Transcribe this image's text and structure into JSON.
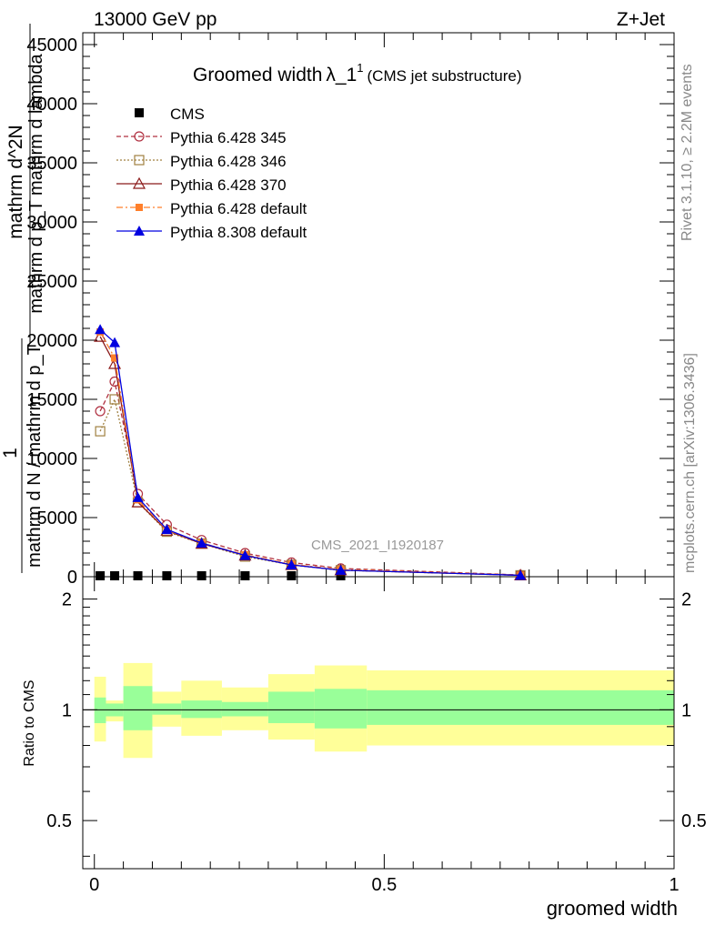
{
  "header": {
    "left": "13000 GeV pp",
    "right": "Z+Jet"
  },
  "side": {
    "rivet": "Rivet 3.1.10, ≥ 2.2M events",
    "mcplots": "mcplots.cern.ch [arXiv:1306.3436]"
  },
  "colors": {
    "cms": "#000000",
    "p345": "#b03040",
    "p346": "#a08040",
    "p370": "#8b1a1a",
    "p6def": "#ff7f2a",
    "p8def": "#0000e0",
    "band_inner": "#99ff99",
    "band_outer": "#ffff99"
  },
  "chart_data": [
    {
      "type": "line",
      "title": "Groomed width",
      "title_symbol": "λ_1",
      "title_sup": "1",
      "title_suffix": "(CMS jet substructure)",
      "watermark": "CMS_2021_I1920187",
      "ylabel_lines": [
        "1",
        "mathrm d N / mathrm d p_T",
        "mathrm d^2N",
        "mathrm d p_T mathrm d lambda"
      ],
      "ylim": [
        0,
        46000
      ],
      "yticks": [
        0,
        5000,
        10000,
        15000,
        20000,
        25000,
        30000,
        35000,
        40000,
        45000
      ],
      "xlim": [
        -0.02,
        1.0
      ],
      "x_bin_edges": [
        0,
        0.02,
        0.05,
        0.1,
        0.15,
        0.22,
        0.3,
        0.38,
        0.47,
        1.0
      ],
      "x_centers": [
        0.01,
        0.035,
        0.075,
        0.125,
        0.185,
        0.26,
        0.34,
        0.425,
        0.735
      ],
      "series": [
        {
          "name": "CMS",
          "key": "cms",
          "marker": "square",
          "dash": "",
          "values": [
            20,
            20,
            20,
            20,
            20,
            20,
            20,
            20,
            20
          ]
        },
        {
          "name": "Pythia 6.428 345",
          "key": "p345",
          "marker": "open-circle",
          "dash": "5,3",
          "values": [
            14000,
            16500,
            7000,
            4400,
            3100,
            2000,
            1200,
            700,
            150
          ]
        },
        {
          "name": "Pythia 6.428 346",
          "key": "p346",
          "marker": "open-square",
          "dash": "2,2",
          "values": [
            12300,
            15000,
            6300,
            3800,
            2800,
            1700,
            1000,
            550,
            120
          ]
        },
        {
          "name": "Pythia 6.428 370",
          "key": "p370",
          "marker": "open-triangle",
          "dash": "",
          "values": [
            20300,
            18000,
            6300,
            3900,
            2800,
            1800,
            1000,
            550,
            120
          ]
        },
        {
          "name": "Pythia 6.428 default",
          "key": "p6def",
          "marker": "filled-square",
          "dash": "7,3,2,3",
          "values": [
            20700,
            18500,
            6500,
            3950,
            2850,
            1850,
            1050,
            600,
            130
          ]
        },
        {
          "name": "Pythia 8.308 default",
          "key": "p8def",
          "marker": "filled-triangle",
          "dash": "",
          "values": [
            20900,
            19800,
            6700,
            4000,
            2850,
            1800,
            1000,
            550,
            120
          ]
        }
      ]
    },
    {
      "type": "area",
      "ylabel": "Ratio to CMS",
      "xlabel": "groomed width",
      "ylim": [
        0.37,
        2.3
      ],
      "yticks": [
        0.5,
        1,
        2
      ],
      "ytick_labels": [
        "0.5",
        "1",
        "2"
      ],
      "xticks": [
        0,
        0.5,
        1
      ],
      "xtick_labels": [
        "0",
        "0.5",
        "1"
      ],
      "bands": [
        {
          "inner": [
            0.92,
            1.08
          ],
          "outer": [
            0.82,
            1.23
          ]
        },
        {
          "inner": [
            0.96,
            1.04
          ],
          "outer": [
            0.93,
            1.06
          ]
        },
        {
          "inner": [
            0.88,
            1.16
          ],
          "outer": [
            0.74,
            1.34
          ]
        },
        {
          "inner": [
            0.97,
            1.04
          ],
          "outer": [
            0.9,
            1.12
          ]
        },
        {
          "inner": [
            0.95,
            1.06
          ],
          "outer": [
            0.85,
            1.2
          ]
        },
        {
          "inner": [
            0.96,
            1.05
          ],
          "outer": [
            0.88,
            1.15
          ]
        },
        {
          "inner": [
            0.92,
            1.12
          ],
          "outer": [
            0.83,
            1.25
          ]
        },
        {
          "inner": [
            0.89,
            1.14
          ],
          "outer": [
            0.77,
            1.32
          ]
        },
        {
          "inner": [
            0.91,
            1.13
          ],
          "outer": [
            0.8,
            1.28
          ]
        }
      ]
    }
  ]
}
